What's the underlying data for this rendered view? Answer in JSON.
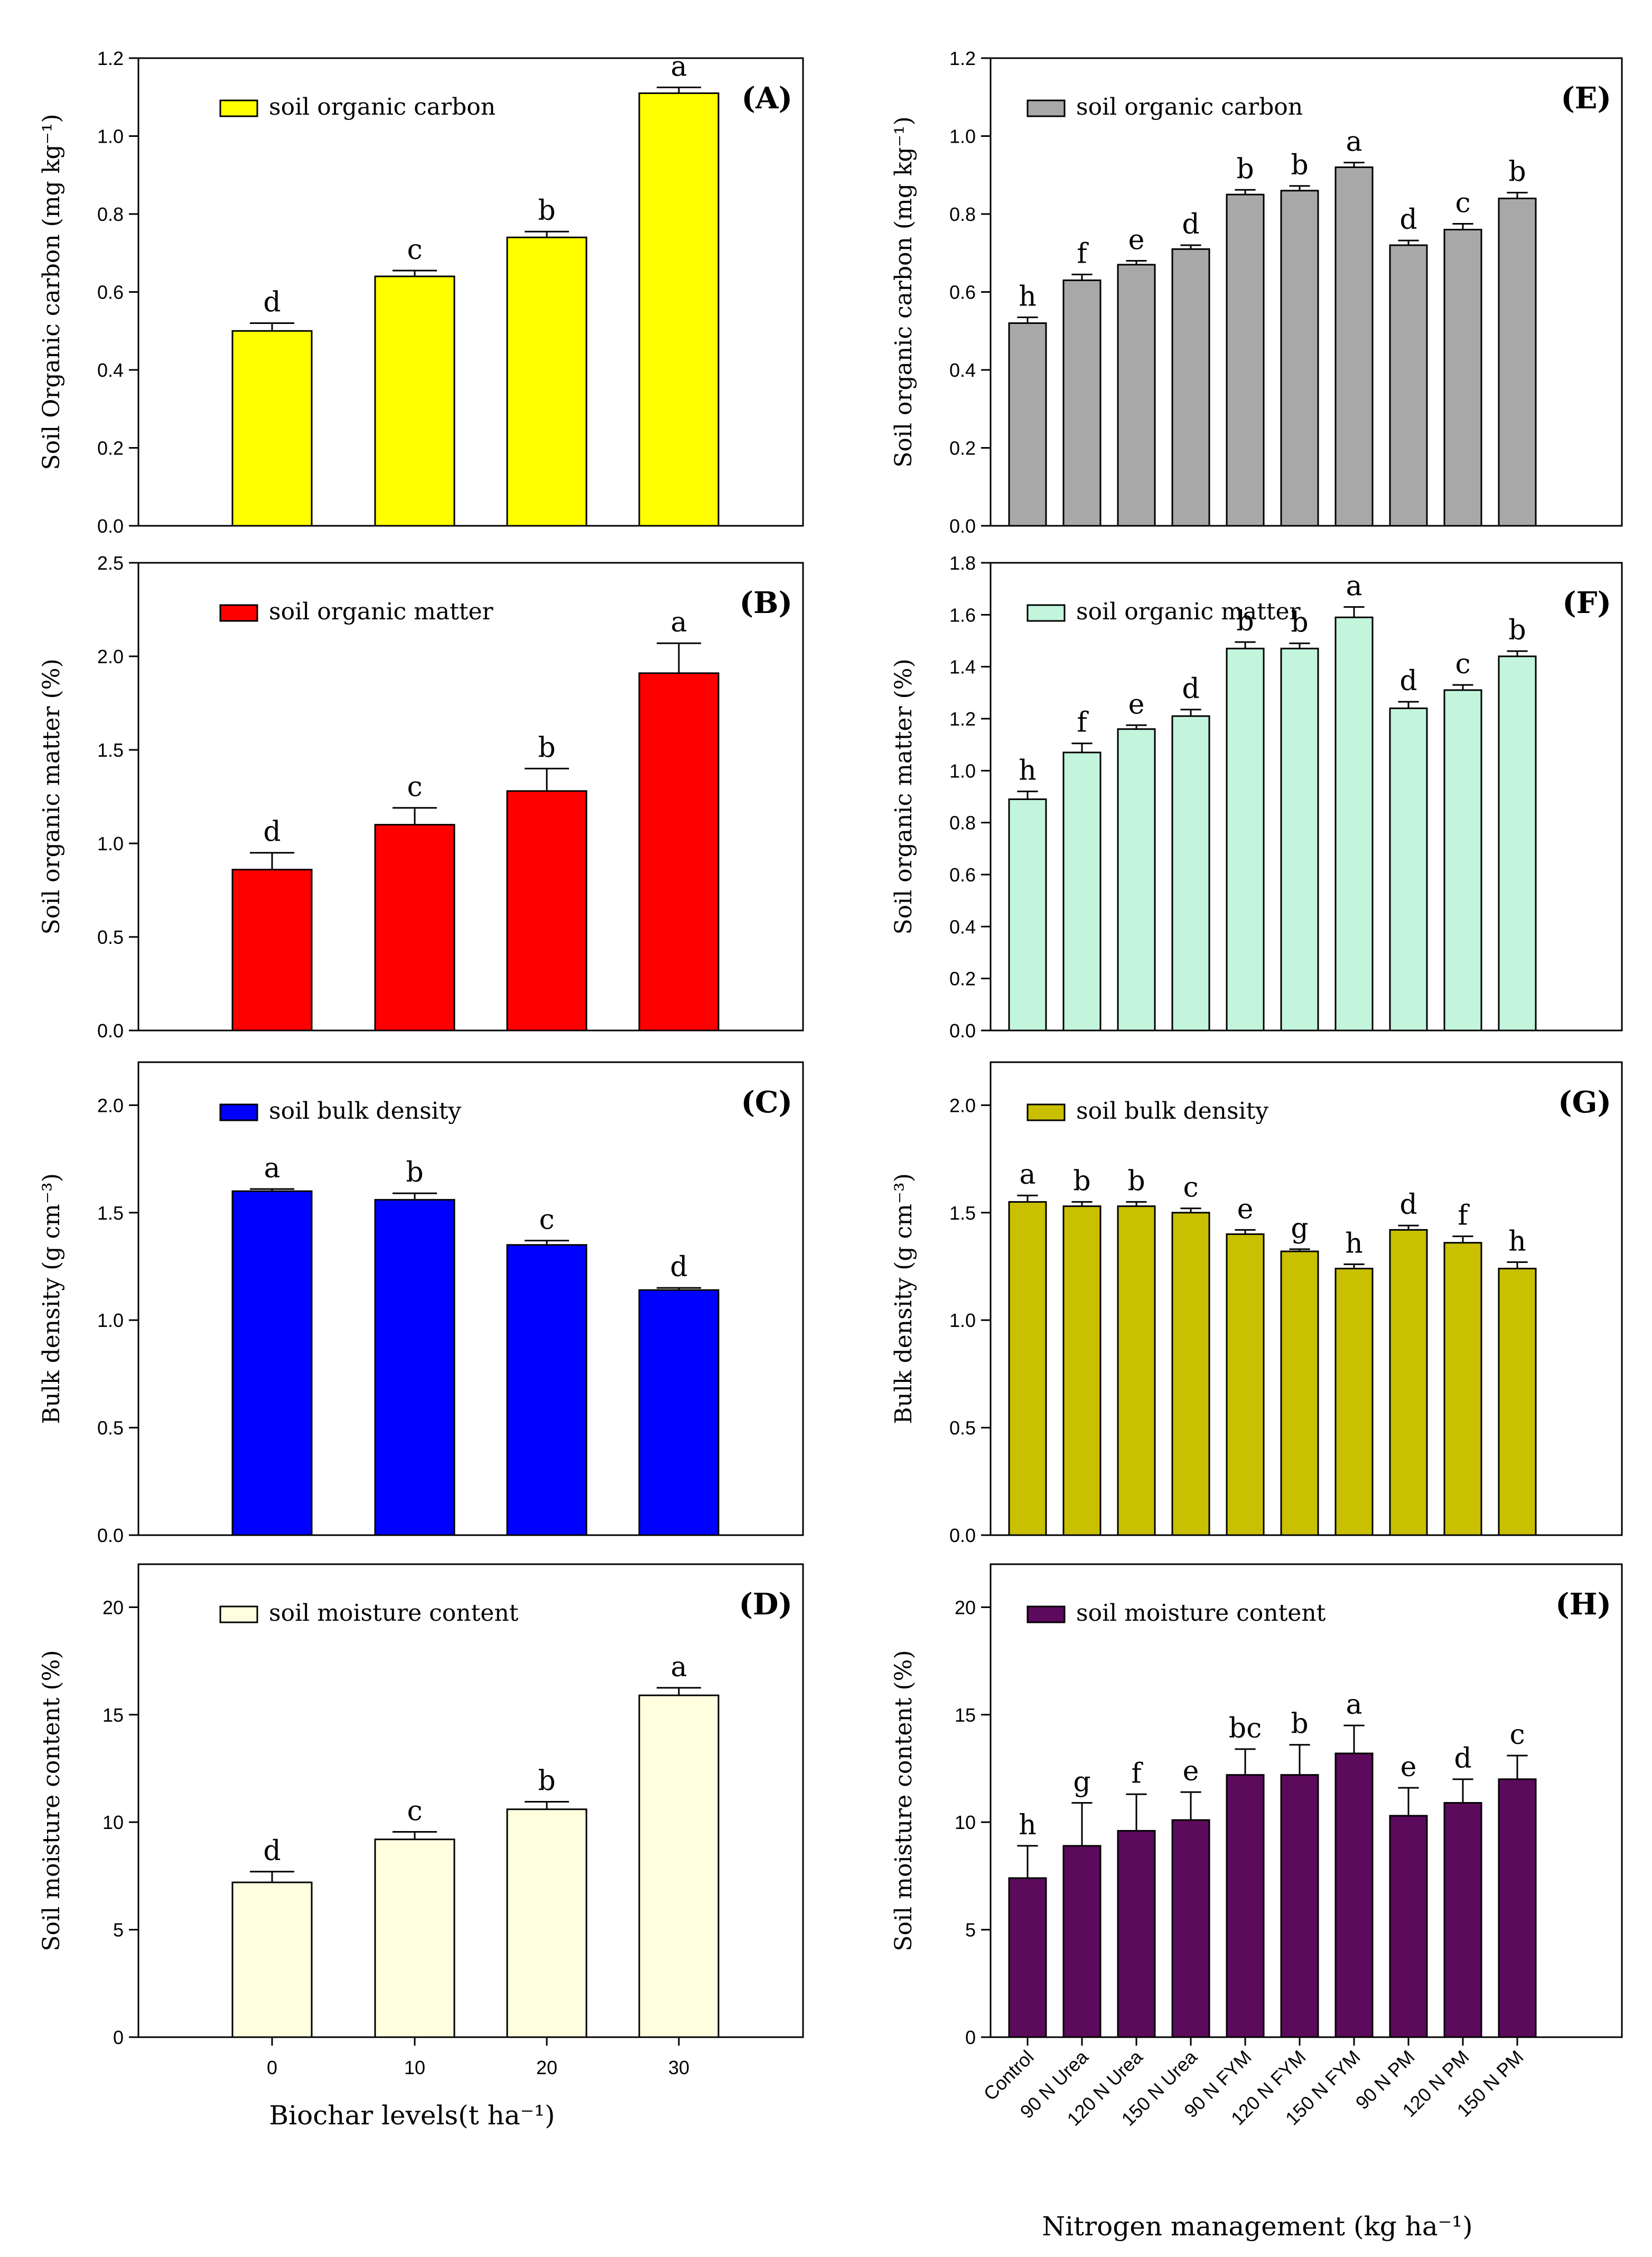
{
  "chart_data": [
    {
      "id": "A",
      "type": "bar",
      "panel_label": "(A)",
      "ylabel": "Soil Organic carbon (mg kg⁻¹)",
      "legend": "soil organic carbon",
      "color": "#ffff00",
      "ylim": [
        0,
        1.2
      ],
      "yticks": [
        "0.0",
        "0.2",
        "0.4",
        "0.6",
        "0.8",
        "1.0",
        "1.2"
      ],
      "categories": [
        "0",
        "10",
        "20",
        "30"
      ],
      "values": [
        0.5,
        0.64,
        0.74,
        1.11
      ],
      "errors": [
        0.02,
        0.015,
        0.015,
        0.015
      ],
      "letters": [
        "d",
        "c",
        "b",
        "a"
      ]
    },
    {
      "id": "B",
      "type": "bar",
      "panel_label": "(B)",
      "ylabel": "Soil organic matter (%)",
      "legend": "soil organic matter",
      "color": "#ff0000",
      "ylim": [
        0,
        2.5
      ],
      "yticks": [
        "0.0",
        "0.5",
        "1.0",
        "1.5",
        "2.0",
        "2.5"
      ],
      "categories": [
        "0",
        "10",
        "20",
        "30"
      ],
      "values": [
        0.86,
        1.1,
        1.28,
        1.91
      ],
      "errors": [
        0.09,
        0.09,
        0.12,
        0.16
      ],
      "letters": [
        "d",
        "c",
        "b",
        "a"
      ]
    },
    {
      "id": "C",
      "type": "bar",
      "panel_label": "(C)",
      "ylabel": "Bulk density (g cm⁻³)",
      "legend": "soil bulk density",
      "color": "#0000ff",
      "ylim": [
        0,
        2.2
      ],
      "yticks": [
        "0.0",
        "0.5",
        "1.0",
        "1.5",
        "2.0"
      ],
      "categories": [
        "0",
        "10",
        "20",
        "30"
      ],
      "values": [
        1.6,
        1.56,
        1.35,
        1.14
      ],
      "errors": [
        0.01,
        0.03,
        0.02,
        0.01
      ],
      "letters": [
        "a",
        "b",
        "c",
        "d"
      ]
    },
    {
      "id": "D",
      "type": "bar",
      "panel_label": "(D)",
      "ylabel": "Soil moisture content (%)",
      "legend": "soil moisture content",
      "color": "#ffffe0",
      "ylim": [
        0,
        22
      ],
      "yticks": [
        "0",
        "5",
        "10",
        "15",
        "20"
      ],
      "categories": [
        "0",
        "10",
        "20",
        "30"
      ],
      "values": [
        7.2,
        9.2,
        10.6,
        15.9
      ],
      "errors": [
        0.5,
        0.35,
        0.35,
        0.35
      ],
      "letters": [
        "d",
        "c",
        "b",
        "a"
      ]
    },
    {
      "id": "E",
      "type": "bar",
      "panel_label": "(E)",
      "ylabel": "Soil organic carbon (mg kg⁻¹)",
      "legend": "soil organic carbon",
      "color": "#a8a8a8",
      "ylim": [
        0,
        1.2
      ],
      "yticks": [
        "0.0",
        "0.2",
        "0.4",
        "0.6",
        "0.8",
        "1.0",
        "1.2"
      ],
      "categories": [
        "Control",
        "90 N Urea",
        "120 N Urea",
        "150 N Urea",
        "90 N FYM",
        "120 N FYM",
        "150 N FYM",
        "90 N PM",
        "120 N PM",
        "150 N PM"
      ],
      "values": [
        0.52,
        0.63,
        0.67,
        0.71,
        0.85,
        0.86,
        0.92,
        0.72,
        0.76,
        0.84
      ],
      "errors": [
        0.015,
        0.015,
        0.01,
        0.01,
        0.012,
        0.012,
        0.012,
        0.012,
        0.015,
        0.015
      ],
      "letters": [
        "h",
        "f",
        "e",
        "d",
        "b",
        "b",
        "a",
        "d",
        "c",
        "b"
      ]
    },
    {
      "id": "F",
      "type": "bar",
      "panel_label": "(F)",
      "ylabel": "Soil organic matter (%)",
      "legend": "soil organic matter",
      "color": "#c2f5dc",
      "ylim": [
        0,
        1.8
      ],
      "yticks": [
        "0.0",
        "0.2",
        "0.4",
        "0.6",
        "0.8",
        "1.0",
        "1.2",
        "1.4",
        "1.6",
        "1.8"
      ],
      "categories": [
        "Control",
        "90 N Urea",
        "120 N Urea",
        "150 N Urea",
        "90 N FYM",
        "120 N FYM",
        "150 N FYM",
        "90 N PM",
        "120 N PM",
        "150 N PM"
      ],
      "values": [
        0.89,
        1.07,
        1.16,
        1.21,
        1.47,
        1.47,
        1.59,
        1.24,
        1.31,
        1.44
      ],
      "errors": [
        0.03,
        0.035,
        0.015,
        0.025,
        0.025,
        0.02,
        0.04,
        0.025,
        0.02,
        0.02
      ],
      "letters": [
        "h",
        "f",
        "e",
        "d",
        "b",
        "b",
        "a",
        "d",
        "c",
        "b"
      ]
    },
    {
      "id": "G",
      "type": "bar",
      "panel_label": "(G)",
      "ylabel": "Bulk density (g cm⁻³)",
      "legend": "soil bulk density",
      "color": "#c8c000",
      "ylim": [
        0,
        2.2
      ],
      "yticks": [
        "0.0",
        "0.5",
        "1.0",
        "1.5",
        "2.0"
      ],
      "categories": [
        "Control",
        "90 N Urea",
        "120 N Urea",
        "150 N Urea",
        "90 N FYM",
        "120 N FYM",
        "150 N FYM",
        "90 N PM",
        "120 N PM",
        "150 N PM"
      ],
      "values": [
        1.55,
        1.53,
        1.53,
        1.5,
        1.4,
        1.32,
        1.24,
        1.42,
        1.36,
        1.24
      ],
      "errors": [
        0.03,
        0.02,
        0.02,
        0.02,
        0.02,
        0.01,
        0.02,
        0.02,
        0.03,
        0.03
      ],
      "letters": [
        "a",
        "b",
        "b",
        "c",
        "e",
        "g",
        "h",
        "d",
        "f",
        "h"
      ]
    },
    {
      "id": "H",
      "type": "bar",
      "panel_label": "(H)",
      "ylabel": "Soil moisture content (%)",
      "legend": "soil moisture content",
      "color": "#5c0a5c",
      "ylim": [
        0,
        22
      ],
      "yticks": [
        "0",
        "5",
        "10",
        "15",
        "20"
      ],
      "categories": [
        "Control",
        "90 N Urea",
        "120 N Urea",
        "150 N Urea",
        "90 N FYM",
        "120 N FYM",
        "150 N FYM",
        "90 N PM",
        "120 N PM",
        "150 N PM"
      ],
      "values": [
        7.4,
        8.9,
        9.6,
        10.1,
        12.2,
        12.2,
        13.2,
        10.3,
        10.9,
        12.0
      ],
      "errors": [
        1.5,
        2.0,
        1.7,
        1.3,
        1.2,
        1.4,
        1.3,
        1.3,
        1.1,
        1.1
      ],
      "letters": [
        "h",
        "g",
        "f",
        "e",
        "bc",
        "b",
        "a",
        "e",
        "d",
        "c"
      ]
    }
  ],
  "left_xlabel": "Biochar levels(t ha⁻¹)",
  "right_xlabel": "Nitrogen management (kg ha⁻¹)"
}
